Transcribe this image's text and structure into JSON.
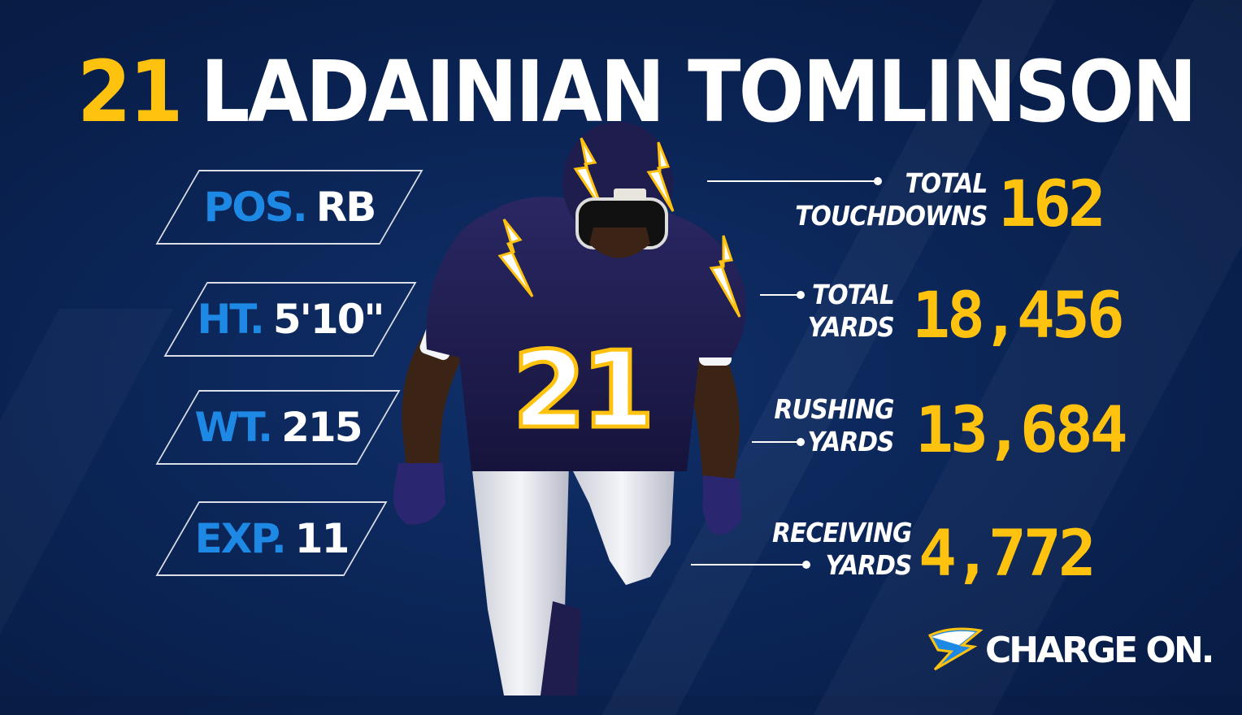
{
  "header": {
    "number": "21",
    "name": "LADAINIAN TOMLINSON"
  },
  "bio": [
    {
      "key": "POS.",
      "value": "RB"
    },
    {
      "key": "HT.",
      "value": "5'10\""
    },
    {
      "key": "WT.",
      "value": "215"
    },
    {
      "key": "EXP.",
      "value": "11"
    }
  ],
  "stats": [
    {
      "label_line1": "TOTAL",
      "label_line2": "TOUCHDOWNS",
      "value": "162"
    },
    {
      "label_line1": "TOTAL",
      "label_line2": "YARDS",
      "value": "18,456"
    },
    {
      "label_line1": "RUSHING",
      "label_line2": "YARDS",
      "value": "13,684"
    },
    {
      "label_line1": "RECEIVING",
      "label_line2": "YARDS",
      "value": "4,772"
    }
  ],
  "branding": {
    "slogan": "CHARGE ON."
  },
  "colors": {
    "background": "#0b2557",
    "gold": "#ffc20e",
    "powder_blue": "#1e88e5",
    "white": "#ffffff",
    "jersey_navy": "#1f1d4e"
  },
  "icons": {
    "logo": "chargers-bolt-icon",
    "player": "player-photo"
  }
}
